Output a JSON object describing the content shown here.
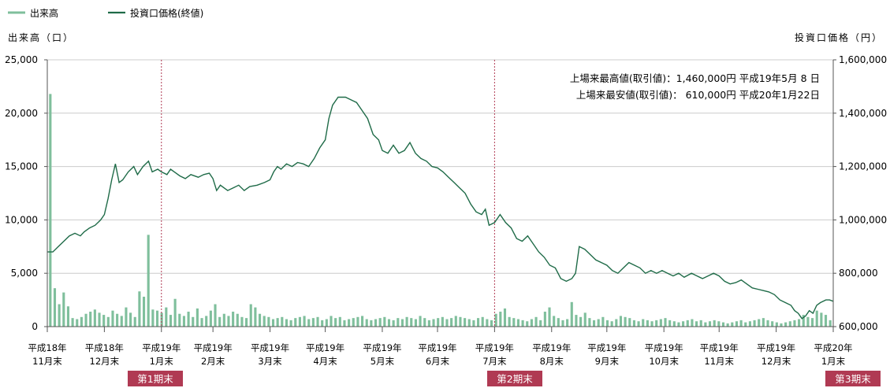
{
  "legend": {
    "volume": "出来高",
    "price": "投資口価格(終値)"
  },
  "axis_titles": {
    "left": "出来高（口）",
    "right": "投資口価格（円）"
  },
  "annotations": [
    "上場来最高値(取引値)：1,460,000円 平成19年5月 8 日",
    "上場来最安値(取引値)：  610,000円 平成20年1月22日"
  ],
  "period_labels": [
    "第1期末",
    "第2期末",
    "第3期末"
  ],
  "colors": {
    "price_line": "#1f6b48",
    "volume_bars": "#7fbf9c",
    "period_marker": "#b03a53",
    "grid": "#cccccc"
  },
  "chart_data": {
    "type": "bar+line",
    "x_ticks": [
      {
        "label": [
          "平成18年",
          "11月末"
        ],
        "day": 0
      },
      {
        "label": [
          "平成18年",
          "12月末"
        ],
        "day": 31
      },
      {
        "label": [
          "平成19年",
          "1月末"
        ],
        "day": 62
      },
      {
        "label": [
          "平成19年",
          "2月末"
        ],
        "day": 90
      },
      {
        "label": [
          "平成19年",
          "3月末"
        ],
        "day": 121
      },
      {
        "label": [
          "平成19年",
          "4月末"
        ],
        "day": 151
      },
      {
        "label": [
          "平成19年",
          "5月末"
        ],
        "day": 182
      },
      {
        "label": [
          "平成19年",
          "6月末"
        ],
        "day": 212
      },
      {
        "label": [
          "平成19年",
          "7月末"
        ],
        "day": 243
      },
      {
        "label": [
          "平成19年",
          "8月末"
        ],
        "day": 274
      },
      {
        "label": [
          "平成19年",
          "9月末"
        ],
        "day": 304
      },
      {
        "label": [
          "平成19年",
          "10月末"
        ],
        "day": 335
      },
      {
        "label": [
          "平成19年",
          "11月末"
        ],
        "day": 365
      },
      {
        "label": [
          "平成19年",
          "12月末"
        ],
        "day": 396
      },
      {
        "label": [
          "平成20年",
          "1月末"
        ],
        "day": 427
      }
    ],
    "left_axis": {
      "ticks": [
        "0",
        "5,000",
        "10,000",
        "15,000",
        "20,000",
        "25,000"
      ],
      "ylim": [
        0,
        25000
      ]
    },
    "right_axis": {
      "ticks": [
        "600,000",
        "800,000",
        "1,000,000",
        "1,200,000",
        "1,400,000",
        "1,600,000"
      ],
      "ylim": [
        600000,
        1600000
      ]
    },
    "period_end_days": [
      62,
      243,
      427
    ],
    "price_series": {
      "name": "投資口価格(終値)",
      "points": [
        [
          0,
          880000
        ],
        [
          3,
          880000
        ],
        [
          6,
          900000
        ],
        [
          9,
          920000
        ],
        [
          12,
          940000
        ],
        [
          15,
          950000
        ],
        [
          18,
          940000
        ],
        [
          20,
          955000
        ],
        [
          23,
          970000
        ],
        [
          26,
          980000
        ],
        [
          29,
          1000000
        ],
        [
          31,
          1020000
        ],
        [
          33,
          1080000
        ],
        [
          35,
          1150000
        ],
        [
          37,
          1210000
        ],
        [
          39,
          1140000
        ],
        [
          41,
          1150000
        ],
        [
          44,
          1180000
        ],
        [
          47,
          1200000
        ],
        [
          49,
          1170000
        ],
        [
          52,
          1200000
        ],
        [
          55,
          1220000
        ],
        [
          57,
          1180000
        ],
        [
          60,
          1190000
        ],
        [
          62,
          1180000
        ],
        [
          65,
          1170000
        ],
        [
          67,
          1190000
        ],
        [
          70,
          1175000
        ],
        [
          72,
          1165000
        ],
        [
          75,
          1155000
        ],
        [
          78,
          1170000
        ],
        [
          82,
          1160000
        ],
        [
          85,
          1170000
        ],
        [
          88,
          1175000
        ],
        [
          90,
          1155000
        ],
        [
          92,
          1110000
        ],
        [
          94,
          1130000
        ],
        [
          98,
          1110000
        ],
        [
          101,
          1120000
        ],
        [
          104,
          1130000
        ],
        [
          107,
          1110000
        ],
        [
          110,
          1125000
        ],
        [
          114,
          1130000
        ],
        [
          118,
          1140000
        ],
        [
          121,
          1150000
        ],
        [
          123,
          1180000
        ],
        [
          125,
          1200000
        ],
        [
          127,
          1190000
        ],
        [
          130,
          1210000
        ],
        [
          133,
          1200000
        ],
        [
          136,
          1215000
        ],
        [
          139,
          1210000
        ],
        [
          142,
          1200000
        ],
        [
          145,
          1230000
        ],
        [
          148,
          1270000
        ],
        [
          151,
          1300000
        ],
        [
          153,
          1380000
        ],
        [
          155,
          1430000
        ],
        [
          158,
          1460000
        ],
        [
          162,
          1460000
        ],
        [
          165,
          1450000
        ],
        [
          168,
          1440000
        ],
        [
          171,
          1410000
        ],
        [
          174,
          1380000
        ],
        [
          177,
          1320000
        ],
        [
          180,
          1300000
        ],
        [
          182,
          1260000
        ],
        [
          185,
          1250000
        ],
        [
          188,
          1280000
        ],
        [
          191,
          1250000
        ],
        [
          194,
          1260000
        ],
        [
          197,
          1290000
        ],
        [
          200,
          1250000
        ],
        [
          203,
          1230000
        ],
        [
          206,
          1220000
        ],
        [
          209,
          1200000
        ],
        [
          212,
          1195000
        ],
        [
          215,
          1180000
        ],
        [
          218,
          1160000
        ],
        [
          221,
          1140000
        ],
        [
          224,
          1120000
        ],
        [
          227,
          1100000
        ],
        [
          230,
          1060000
        ],
        [
          233,
          1030000
        ],
        [
          236,
          1020000
        ],
        [
          238,
          1040000
        ],
        [
          240,
          980000
        ],
        [
          243,
          990000
        ],
        [
          246,
          1020000
        ],
        [
          249,
          990000
        ],
        [
          252,
          970000
        ],
        [
          255,
          930000
        ],
        [
          258,
          920000
        ],
        [
          261,
          940000
        ],
        [
          264,
          910000
        ],
        [
          267,
          880000
        ],
        [
          270,
          860000
        ],
        [
          273,
          830000
        ],
        [
          276,
          820000
        ],
        [
          279,
          780000
        ],
        [
          282,
          770000
        ],
        [
          285,
          780000
        ],
        [
          287,
          800000
        ],
        [
          289,
          900000
        ],
        [
          292,
          890000
        ],
        [
          295,
          870000
        ],
        [
          298,
          850000
        ],
        [
          301,
          840000
        ],
        [
          304,
          830000
        ],
        [
          307,
          810000
        ],
        [
          310,
          800000
        ],
        [
          313,
          820000
        ],
        [
          316,
          840000
        ],
        [
          319,
          830000
        ],
        [
          322,
          820000
        ],
        [
          325,
          800000
        ],
        [
          328,
          810000
        ],
        [
          331,
          800000
        ],
        [
          334,
          810000
        ],
        [
          337,
          800000
        ],
        [
          340,
          790000
        ],
        [
          343,
          800000
        ],
        [
          346,
          785000
        ],
        [
          350,
          800000
        ],
        [
          353,
          790000
        ],
        [
          356,
          780000
        ],
        [
          359,
          790000
        ],
        [
          362,
          800000
        ],
        [
          365,
          790000
        ],
        [
          368,
          770000
        ],
        [
          371,
          760000
        ],
        [
          374,
          765000
        ],
        [
          377,
          775000
        ],
        [
          380,
          760000
        ],
        [
          383,
          745000
        ],
        [
          386,
          740000
        ],
        [
          389,
          735000
        ],
        [
          392,
          730000
        ],
        [
          395,
          720000
        ],
        [
          398,
          700000
        ],
        [
          401,
          690000
        ],
        [
          404,
          680000
        ],
        [
          406,
          660000
        ],
        [
          408,
          650000
        ],
        [
          410,
          630000
        ],
        [
          412,
          640000
        ],
        [
          414,
          660000
        ],
        [
          416,
          650000
        ],
        [
          418,
          680000
        ],
        [
          420,
          690000
        ],
        [
          423,
          700000
        ],
        [
          425,
          700000
        ],
        [
          427,
          695000
        ]
      ]
    },
    "volume_series": {
      "name": "出来高",
      "note": "daily volume bars; values estimated",
      "values": [
        21800,
        3600,
        2100,
        3200,
        1900,
        800,
        700,
        900,
        1200,
        1400,
        1600,
        1300,
        1100,
        900,
        1500,
        1200,
        1000,
        1800,
        1300,
        900,
        3300,
        2800,
        8600,
        1600,
        1500,
        1300,
        1800,
        1100,
        2600,
        1200,
        1000,
        1400,
        900,
        1700,
        800,
        1000,
        1500,
        2100,
        900,
        1200,
        1000,
        1400,
        1200,
        900,
        800,
        2100,
        1800,
        1200,
        1000,
        900,
        700,
        800,
        900,
        700,
        600,
        800,
        900,
        1000,
        700,
        800,
        900,
        600,
        700,
        1000,
        800,
        900,
        600,
        700,
        800,
        900,
        1000,
        700,
        600,
        700,
        800,
        900,
        700,
        600,
        800,
        700,
        900,
        800,
        700,
        1000,
        800,
        600,
        700,
        800,
        900,
        700,
        800,
        1000,
        900,
        800,
        700,
        600,
        800,
        900,
        700,
        600,
        1200,
        1400,
        1700,
        900,
        800,
        700,
        600,
        500,
        700,
        900,
        600,
        1400,
        1800,
        1000,
        800,
        600,
        700,
        2300,
        1100,
        900,
        1300,
        800,
        600,
        700,
        900,
        600,
        500,
        700,
        1000,
        900,
        800,
        600,
        500,
        700,
        600,
        500,
        600,
        700,
        800,
        600,
        500,
        400,
        500,
        600,
        700,
        500,
        600,
        400,
        500,
        600,
        500,
        400,
        300,
        400,
        500,
        600,
        400,
        500,
        600,
        700,
        800,
        600,
        500,
        400,
        300,
        400,
        500,
        600,
        700,
        1100,
        900,
        800,
        1500,
        1300,
        1100,
        600
      ]
    }
  }
}
